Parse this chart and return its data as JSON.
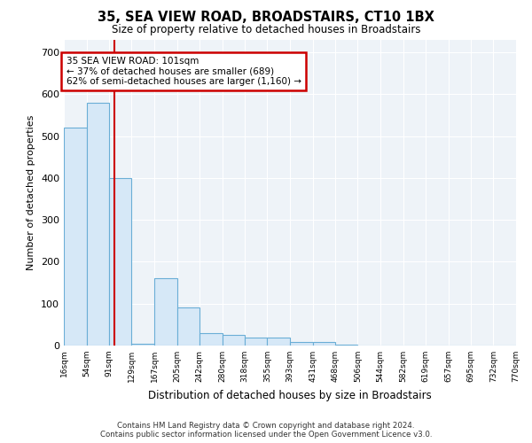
{
  "title1": "35, SEA VIEW ROAD, BROADSTAIRS, CT10 1BX",
  "title2": "Size of property relative to detached houses in Broadstairs",
  "xlabel": "Distribution of detached houses by size in Broadstairs",
  "ylabel": "Number of detached properties",
  "footer1": "Contains HM Land Registry data © Crown copyright and database right 2024.",
  "footer2": "Contains public sector information licensed under the Open Government Licence v3.0.",
  "annotation_line1": "35 SEA VIEW ROAD: 101sqm",
  "annotation_line2": "← 37% of detached houses are smaller (689)",
  "annotation_line3": "62% of semi-detached houses are larger (1,160) →",
  "property_size": 101,
  "bar_color": "#d6e8f7",
  "bar_edge_color": "#6aaed6",
  "line_color": "#cc0000",
  "annotation_box_color": "#cc0000",
  "fig_background_color": "#ffffff",
  "axes_background_color": "#eef3f8",
  "grid_color": "#ffffff",
  "bin_edges": [
    16,
    54,
    91,
    129,
    167,
    205,
    242,
    280,
    318,
    355,
    393,
    431,
    468,
    506,
    544,
    582,
    619,
    657,
    695,
    732,
    770
  ],
  "bar_heights": [
    520,
    580,
    400,
    5,
    160,
    90,
    30,
    25,
    18,
    18,
    8,
    8,
    3,
    0,
    0,
    0,
    0,
    0,
    0,
    0
  ],
  "ylim": [
    0,
    730
  ],
  "yticks": [
    0,
    100,
    200,
    300,
    400,
    500,
    600,
    700
  ]
}
